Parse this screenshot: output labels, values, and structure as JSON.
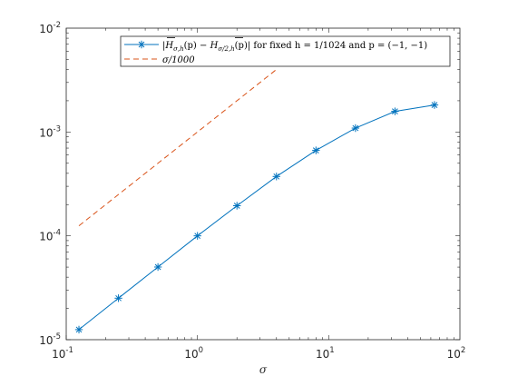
{
  "chart_data": {
    "type": "line",
    "xscale": "log",
    "yscale": "log",
    "xlim": [
      0.1,
      100
    ],
    "ylim": [
      1e-05,
      0.01
    ],
    "xlabel": "σ",
    "ylabel": "",
    "grid": false,
    "legend_position": "top-right",
    "x_ticks": [
      {
        "base": "10",
        "exp": "-1",
        "value": 0.1
      },
      {
        "base": "10",
        "exp": "0",
        "value": 1
      },
      {
        "base": "10",
        "exp": "1",
        "value": 10
      },
      {
        "base": "10",
        "exp": "2",
        "value": 100
      }
    ],
    "y_ticks": [
      {
        "base": "10",
        "exp": "-5",
        "value": 1e-05
      },
      {
        "base": "10",
        "exp": "-4",
        "value": 0.0001
      },
      {
        "base": "10",
        "exp": "-3",
        "value": 0.001
      },
      {
        "base": "10",
        "exp": "-2",
        "value": 0.01
      }
    ],
    "series": [
      {
        "name": "|H̅σ,h(p) − H̅σ/2,h(p)| for fixed h = 1/1024 and p = (−1, −1)",
        "style": "solid",
        "marker": "asterisk",
        "color": "#0072BD",
        "x": [
          0.125,
          0.25,
          0.5,
          1,
          2,
          4,
          8,
          16,
          32,
          64
        ],
        "y": [
          1.25e-05,
          2.51e-05,
          5.01e-05,
          0.0001,
          0.000195,
          0.000373,
          0.000665,
          0.00109,
          0.00158,
          0.00182
        ]
      },
      {
        "name": "σ/1000",
        "style": "dashed",
        "marker": "none",
        "color": "#D95319",
        "x": [
          0.125,
          0.25,
          0.5,
          1,
          2,
          4
        ],
        "y": [
          0.000125,
          0.00025,
          0.0005,
          0.001,
          0.002,
          0.004
        ]
      }
    ]
  },
  "legend": {
    "entry1": {
      "abs_open": "|",
      "h_letter": "H",
      "sub1": "σ,h",
      "middle": "(p) − ",
      "sub2": "σ/2,h",
      "close": "(p)| for fixed h = 1/1024 and p = (−1, −1)"
    },
    "entry2": {
      "text": "σ/1000"
    }
  }
}
